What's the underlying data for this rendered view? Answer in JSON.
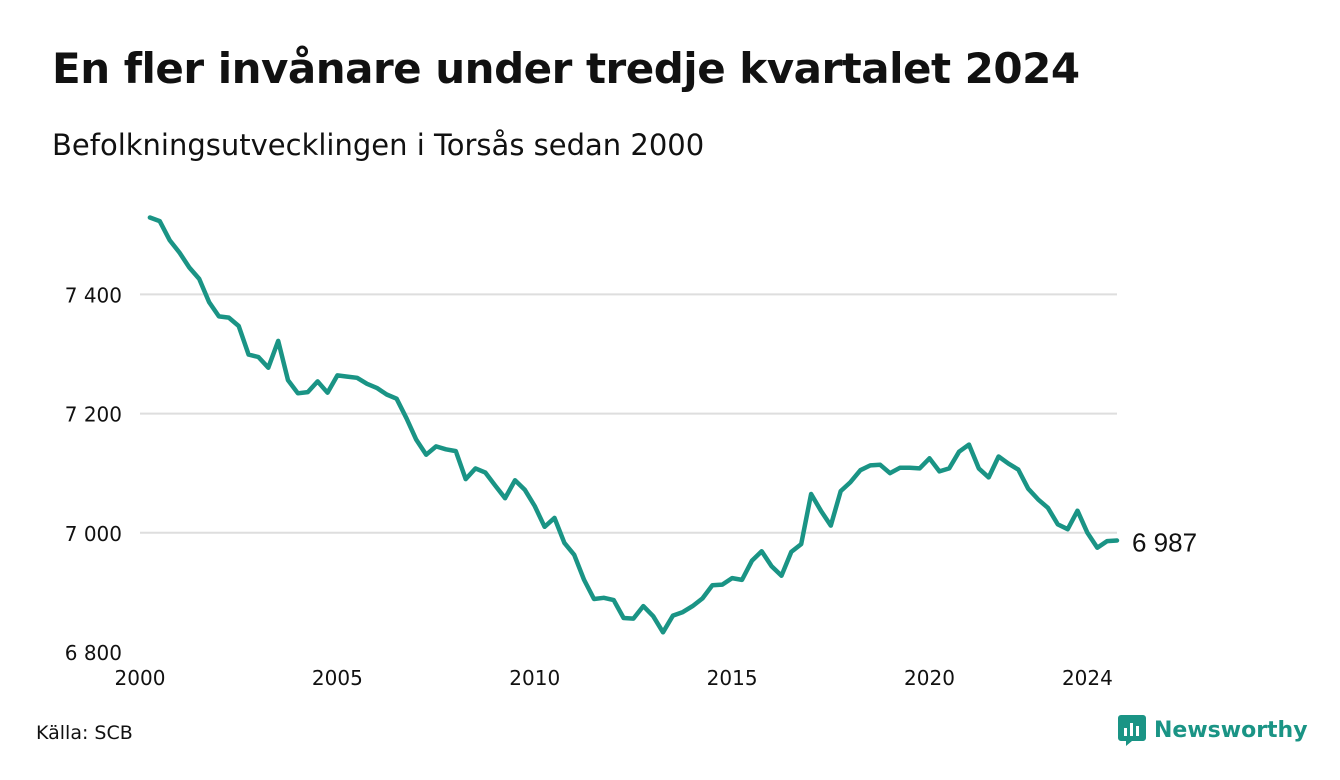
{
  "title": "En fler invånare under tredje kvartalet 2024",
  "subtitle": "Befolkningsutvecklingen i Torsås sedan 2000",
  "source": "Källa: SCB",
  "brand": {
    "name": "Newsworthy",
    "icon": "newsworthy-logo-icon",
    "color": "#1a9485"
  },
  "chart_data": {
    "type": "line",
    "title": "En fler invånare under tredje kvartalet 2024",
    "subtitle": "Befolkningsutvecklingen i Torsås sedan 2000",
    "xlabel": "",
    "ylabel": "",
    "xlim": [
      2000,
      2024.75
    ],
    "ylim": [
      6800,
      7560
    ],
    "x_ticks": [
      2000,
      2005,
      2010,
      2015,
      2020,
      2024
    ],
    "x_tick_labels": [
      "2000",
      "2005",
      "2010",
      "2015",
      "2020",
      "2024"
    ],
    "y_ticks": [
      6800,
      7000,
      7200,
      7400
    ],
    "y_tick_labels": [
      "6 800",
      "7 000",
      "7 200",
      "7 400"
    ],
    "grid": "horizontal",
    "line_color": "#1a9485",
    "end_label": "6 987",
    "series": [
      {
        "x": [
          2000.25,
          2000.5,
          2000.75,
          2001.0,
          2001.25,
          2001.5,
          2001.75,
          2002.0,
          2002.25,
          2002.5,
          2002.75,
          2003.0,
          2003.25,
          2003.5,
          2003.75,
          2004.0,
          2004.25,
          2004.5,
          2004.75,
          2005.0,
          2005.25,
          2005.5,
          2005.75,
          2006.0,
          2006.25,
          2006.5,
          2006.75,
          2007.0,
          2007.25,
          2007.5,
          2007.75,
          2008.0,
          2008.25,
          2008.5,
          2008.75,
          2009.0,
          2009.25,
          2009.5,
          2009.75,
          2010.0,
          2010.25,
          2010.5,
          2010.75,
          2011.0,
          2011.25,
          2011.5,
          2011.75,
          2012.0,
          2012.25,
          2012.5,
          2012.75,
          2013.0,
          2013.25,
          2013.5,
          2013.75,
          2014.0,
          2014.25,
          2014.5,
          2014.75,
          2015.0,
          2015.25,
          2015.5,
          2015.75,
          2016.0,
          2016.25,
          2016.5,
          2016.75,
          2017.0,
          2017.25,
          2017.5,
          2017.75,
          2018.0,
          2018.25,
          2018.5,
          2018.75,
          2019.0,
          2019.25,
          2019.5,
          2019.75,
          2020.0,
          2020.25,
          2020.5,
          2020.75,
          2021.0,
          2021.25,
          2021.5,
          2021.75,
          2022.0,
          2022.25,
          2022.5,
          2022.75,
          2023.0,
          2023.25,
          2023.5,
          2023.75,
          2024.0,
          2024.25,
          2024.5,
          2024.75
        ],
        "values": [
          7529,
          7523,
          7491,
          7470,
          7445,
          7426,
          7387,
          7363,
          7361,
          7347,
          7299,
          7295,
          7277,
          7322,
          7256,
          7234,
          7236,
          7254,
          7235,
          7264,
          7262,
          7260,
          7250,
          7243,
          7232,
          7225,
          7192,
          7156,
          7131,
          7145,
          7140,
          7137,
          7090,
          7108,
          7101,
          7079,
          7058,
          7088,
          7072,
          7045,
          7010,
          7025,
          6983,
          6963,
          6921,
          6889,
          6891,
          6887,
          6857,
          6856,
          6877,
          6860,
          6833,
          6861,
          6867,
          6877,
          6890,
          6912,
          6913,
          6924,
          6921,
          6953,
          6969,
          6944,
          6928,
          6968,
          6981,
          7065,
          7037,
          7012,
          7070,
          7085,
          7105,
          7113,
          7114,
          7100,
          7109,
          7109,
          7108,
          7125,
          7103,
          7108,
          7136,
          7148,
          7108,
          7093,
          7128,
          7116,
          7106,
          7074,
          7056,
          7042,
          7014,
          7006,
          7037,
          7000,
          6975,
          6986,
          6987
        ]
      }
    ]
  }
}
